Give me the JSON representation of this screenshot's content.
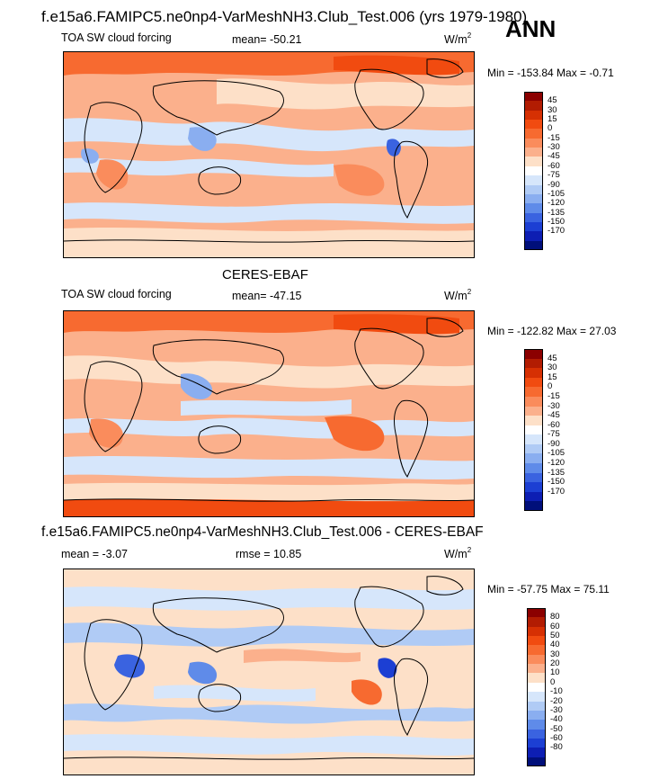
{
  "header": {
    "case_title": "f.e15a6.FAMIPC5.ne0np4-VarMeshNH3.Club_Test.006 (yrs 1979-1980)",
    "season": "ANN"
  },
  "panels": [
    {
      "id": "model",
      "title": "",
      "field_label": "TOA SW cloud forcing",
      "stat_text": "mean= -50.21",
      "units_base": "W/m",
      "units_exp": "2",
      "minmax": "Min = -153.84 Max =  -0.71",
      "colorbar": {
        "levels": [
          "45",
          "30",
          "15",
          "0",
          "-15",
          "-30",
          "-45",
          "-60",
          "-75",
          "-90",
          "-105",
          "-120",
          "-135",
          "-150",
          "-170"
        ],
        "colors": [
          "#8b0000",
          "#b21c02",
          "#d63003",
          "#f14b10",
          "#f76a30",
          "#fa8c5c",
          "#fbb08c",
          "#fde0c8",
          "#ffffff",
          "#d6e6fb",
          "#b0cbf5",
          "#8aaef0",
          "#5f8be9",
          "#3a63e0",
          "#1c3fd3",
          "#0d1eb3",
          "#000f7a"
        ]
      }
    },
    {
      "id": "obs",
      "title": "CERES-EBAF",
      "field_label": "TOA SW cloud forcing",
      "stat_text": "mean= -47.15",
      "units_base": "W/m",
      "units_exp": "2",
      "minmax": "Min = -122.82 Max =  27.03",
      "colorbar": {
        "levels": [
          "45",
          "30",
          "15",
          "0",
          "-15",
          "-30",
          "-45",
          "-60",
          "-75",
          "-90",
          "-105",
          "-120",
          "-135",
          "-150",
          "-170"
        ],
        "colors": [
          "#8b0000",
          "#b21c02",
          "#d63003",
          "#f14b10",
          "#f76a30",
          "#fa8c5c",
          "#fbb08c",
          "#fde0c8",
          "#ffffff",
          "#d6e6fb",
          "#b0cbf5",
          "#8aaef0",
          "#5f8be9",
          "#3a63e0",
          "#1c3fd3",
          "#0d1eb3",
          "#000f7a"
        ]
      }
    },
    {
      "id": "diff",
      "title": "f.e15a6.FAMIPC5.ne0np4-VarMeshNH3.Club_Test.006 - CERES-EBAF",
      "field_label": "",
      "stat_text": "mean =  -3.07",
      "rmse_text": "rmse =  10.85",
      "units_base": "W/m",
      "units_exp": "2",
      "minmax": "Min = -57.75 Max =  75.11",
      "colorbar": {
        "levels": [
          "80",
          "60",
          "50",
          "40",
          "30",
          "20",
          "10",
          "0",
          "-10",
          "-20",
          "-30",
          "-40",
          "-50",
          "-60",
          "-80"
        ],
        "colors": [
          "#8b0000",
          "#b21c02",
          "#d63003",
          "#f14b10",
          "#f76a30",
          "#fa8c5c",
          "#fbb08c",
          "#fde0c8",
          "#ffffff",
          "#d6e6fb",
          "#b0cbf5",
          "#8aaef0",
          "#5f8be9",
          "#3a63e0",
          "#1c3fd3",
          "#0d1eb3",
          "#000f7a"
        ]
      }
    }
  ]
}
